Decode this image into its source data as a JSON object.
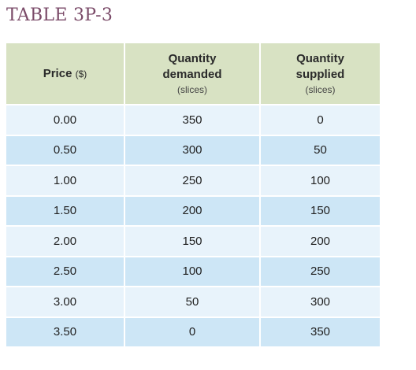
{
  "title": "TABLE 3P-3",
  "headers": {
    "price": {
      "main": "Price",
      "unit": "($)"
    },
    "demanded": {
      "line1": "Quantity",
      "line2": "demanded",
      "sub": "(slices)"
    },
    "supplied": {
      "line1": "Quantity",
      "line2": "supplied",
      "sub": "(slices)"
    }
  },
  "rows": [
    {
      "price": "0.00",
      "demanded": "350",
      "supplied": "0"
    },
    {
      "price": "0.50",
      "demanded": "300",
      "supplied": "50"
    },
    {
      "price": "1.00",
      "demanded": "250",
      "supplied": "100"
    },
    {
      "price": "1.50",
      "demanded": "200",
      "supplied": "150"
    },
    {
      "price": "2.00",
      "demanded": "150",
      "supplied": "200"
    },
    {
      "price": "2.50",
      "demanded": "100",
      "supplied": "250"
    },
    {
      "price": "3.00",
      "demanded": "50",
      "supplied": "300"
    },
    {
      "price": "3.50",
      "demanded": "0",
      "supplied": "350"
    }
  ],
  "colors": {
    "title": "#7a4a68",
    "header_bg": "#d8e2c3",
    "row_light": "#e8f3fb",
    "row_dark": "#cde6f6"
  }
}
